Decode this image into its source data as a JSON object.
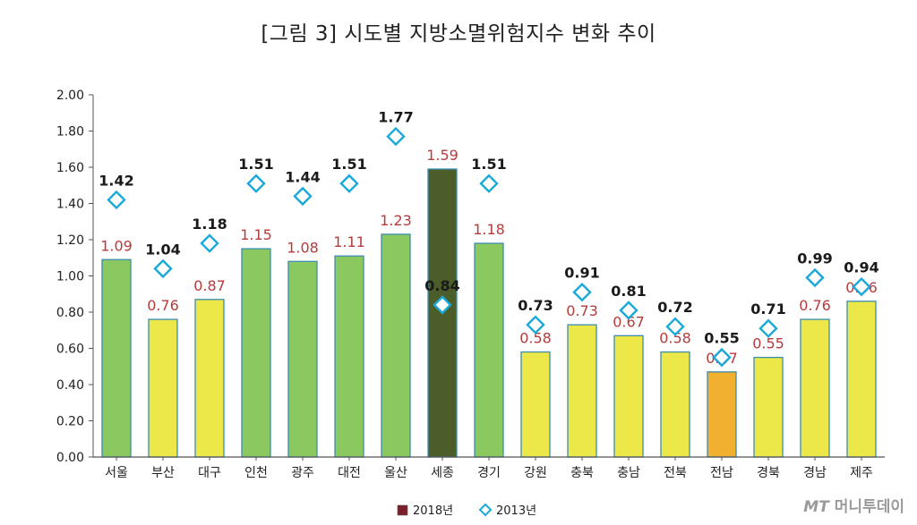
{
  "title": "[그림 3] 시도별 지방소멸위험지수 변화 추이",
  "watermark": {
    "prefix": "MT",
    "name": "머니투데이"
  },
  "chart_data": {
    "type": "bar",
    "title": "[그림 3] 시도별 지방소멸위험지수 변화 추이",
    "xlabel": "",
    "ylabel": "",
    "ylim": [
      0,
      2.0
    ],
    "y_ticks": [
      "0.00",
      "0.20",
      "0.40",
      "0.60",
      "0.80",
      "1.00",
      "1.20",
      "1.40",
      "1.60",
      "1.80",
      "2.00"
    ],
    "grid": false,
    "legend_position": "bottom-center",
    "categories": [
      "서울",
      "부산",
      "대구",
      "인천",
      "광주",
      "대전",
      "울산",
      "세종",
      "경기",
      "강원",
      "충북",
      "충남",
      "전북",
      "전남",
      "경북",
      "경남",
      "제주"
    ],
    "series": [
      {
        "name": "2018년",
        "kind": "bar",
        "values": [
          1.09,
          0.76,
          0.87,
          1.15,
          1.08,
          1.11,
          1.23,
          1.59,
          1.18,
          0.58,
          0.73,
          0.67,
          0.58,
          0.47,
          0.55,
          0.76,
          0.86
        ],
        "labels": [
          "1.09",
          "0.76",
          "0.87",
          "1.15",
          "1.08",
          "1.11",
          "1.23",
          "1.59",
          "1.18",
          "0.58",
          "0.73",
          "0.67",
          "0.58",
          "0.47",
          "0.55",
          "0.76",
          "0.86"
        ],
        "bar_colors": [
          "#8cc860",
          "#ece84a",
          "#ece84a",
          "#8cc860",
          "#8cc860",
          "#8cc860",
          "#8cc860",
          "#4b5e2a",
          "#8cc860",
          "#ece84a",
          "#ece84a",
          "#ece84a",
          "#ece84a",
          "#f2b030",
          "#ece84a",
          "#ece84a",
          "#ece84a"
        ],
        "label_color": "#b83a3a",
        "legend_color": "#7a1f2a"
      },
      {
        "name": "2013년",
        "kind": "marker",
        "marker": "diamond",
        "values": [
          1.42,
          1.04,
          1.18,
          1.51,
          1.44,
          1.51,
          1.77,
          0.84,
          1.51,
          0.73,
          0.91,
          0.81,
          0.72,
          0.55,
          0.71,
          0.99,
          0.94
        ],
        "labels": [
          "1.42",
          "1.04",
          "1.18",
          "1.51",
          "1.44",
          "1.51",
          "1.77",
          "0.84",
          "1.51",
          "0.73",
          "0.91",
          "0.81",
          "0.72",
          "0.55",
          "0.71",
          "0.99",
          "0.94"
        ],
        "color": "#19a9d8",
        "label_color": "#1a1a1a"
      }
    ]
  }
}
